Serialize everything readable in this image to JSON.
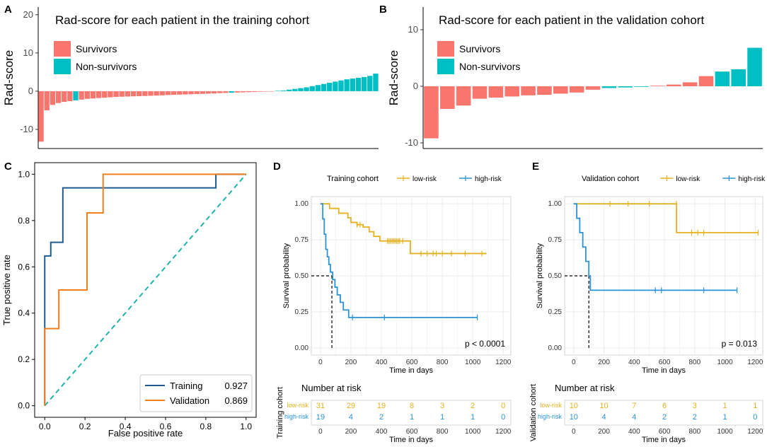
{
  "figure": {
    "panel_labels": [
      "A",
      "B",
      "C",
      "D",
      "E"
    ]
  },
  "colors": {
    "survivors": "#F8766D",
    "non_survivors": "#00BFC4",
    "training_roc": "#1F5B8F",
    "validation_roc": "#F07F1D",
    "diagonal": "#1FB3AB",
    "low_risk": "#E6B01E",
    "high_risk": "#2A93D5",
    "grid": "#EBEBEB"
  },
  "chart_data": [
    {
      "id": "A",
      "type": "bar",
      "title": "Rad-score for each patient in the training cohort",
      "ylabel": "Rad-score",
      "xlabel": "",
      "ylim": [
        -15,
        22
      ],
      "yticks": [
        20,
        10,
        0,
        -10
      ],
      "legend": [
        "Survivors",
        "Non-survivors"
      ],
      "legend_position": "top-left",
      "values": [
        -13.2,
        -5.0,
        -3.6,
        -3.1,
        -2.8,
        -2.6,
        -2.4,
        -2.2,
        -2.0,
        -1.9,
        -1.8,
        -1.7,
        -1.6,
        -1.5,
        -1.45,
        -1.4,
        -1.35,
        -1.3,
        -1.25,
        -1.2,
        -1.15,
        -1.1,
        -1.0,
        -0.95,
        -0.9,
        -0.85,
        -0.8,
        -0.75,
        -0.7,
        -0.65,
        -0.6,
        -0.5,
        -0.45,
        -0.4,
        -0.35,
        -0.3,
        -0.25,
        -0.2,
        -0.15,
        -0.1,
        -0.05,
        0.1,
        0.2,
        0.4,
        0.6,
        0.8,
        1.0,
        1.3,
        1.6,
        1.9,
        2.2,
        2.5,
        2.8,
        3.1,
        3.3,
        3.5,
        3.7,
        4.0,
        4.6
      ],
      "groups": [
        "S",
        "S",
        "S",
        "S",
        "S",
        "S",
        "N",
        "S",
        "S",
        "S",
        "S",
        "S",
        "S",
        "S",
        "S",
        "S",
        "S",
        "S",
        "S",
        "S",
        "S",
        "S",
        "S",
        "S",
        "S",
        "S",
        "S",
        "S",
        "S",
        "S",
        "S",
        "S",
        "S",
        "N",
        "S",
        "S",
        "S",
        "S",
        "S",
        "S",
        "S",
        "N",
        "N",
        "N",
        "N",
        "N",
        "N",
        "N",
        "N",
        "N",
        "N",
        "N",
        "N",
        "N",
        "N",
        "N",
        "N",
        "N",
        "N"
      ]
    },
    {
      "id": "B",
      "type": "bar",
      "title": "Rad-score for each patient in the validation cohort",
      "ylabel": "Rad-score",
      "xlabel": "",
      "ylim": [
        -11,
        14
      ],
      "yticks": [
        10,
        0,
        -10
      ],
      "legend": [
        "Survivors",
        "Non-survivors"
      ],
      "legend_position": "top-left",
      "values": [
        -9.2,
        -4.0,
        -3.4,
        -2.2,
        -2.0,
        -1.8,
        -1.6,
        -1.5,
        -1.3,
        -1.1,
        -0.6,
        -0.3,
        -0.2,
        -0.1,
        0.1,
        0.3,
        0.7,
        1.8,
        2.6,
        3.0,
        6.8
      ],
      "groups": [
        "S",
        "S",
        "S",
        "S",
        "S",
        "S",
        "S",
        "S",
        "S",
        "S",
        "S",
        "N",
        "N",
        "N",
        "S",
        "S",
        "S",
        "S",
        "N",
        "N",
        "N"
      ]
    },
    {
      "id": "C",
      "type": "line",
      "title": "",
      "xlabel": "False positive rate",
      "ylabel": "True positive rate",
      "xlim": [
        0,
        1
      ],
      "ylim": [
        0,
        1
      ],
      "xticks": [
        "0.0",
        "0.2",
        "0.4",
        "0.6",
        "0.8",
        "1.0"
      ],
      "yticks": [
        "0.0",
        "0.2",
        "0.4",
        "0.6",
        "0.8",
        "1.0"
      ],
      "legend_position": "bottom-right",
      "series": [
        {
          "name": "Training",
          "auc": "0.927",
          "x": [
            0,
            0,
            0.03,
            0.03,
            0.09,
            0.09,
            0.85,
            0.85,
            1.0
          ],
          "y": [
            0,
            0.647,
            0.647,
            0.706,
            0.706,
            0.941,
            0.941,
            1.0,
            1.0
          ]
        },
        {
          "name": "Validation",
          "auc": "0.869",
          "x": [
            0,
            0,
            0.07,
            0.07,
            0.21,
            0.21,
            0.29,
            0.29,
            1.0
          ],
          "y": [
            0,
            0.333,
            0.333,
            0.5,
            0.5,
            0.833,
            0.833,
            1.0,
            1.0
          ]
        }
      ],
      "diagonal": {
        "x": [
          0,
          1
        ],
        "y": [
          0,
          1
        ]
      }
    },
    {
      "id": "D",
      "type": "line",
      "title": "",
      "legend_title": "Training cohort",
      "legend": [
        "low-risk",
        "high-risk"
      ],
      "legend_position": "top",
      "xlabel": "Time in days",
      "ylabel": "Survival probability",
      "xlim": [
        0,
        1250
      ],
      "ylim": [
        0,
        1
      ],
      "xticks": [
        "0",
        "200",
        "400",
        "600",
        "800",
        "1000",
        "1200"
      ],
      "yticks": [
        "0.00",
        "0.25",
        "0.50",
        "0.75",
        "1.00"
      ],
      "pvalue": "p < 0.0001",
      "median_line": {
        "x": 75,
        "y": 0.5
      },
      "series": [
        {
          "name": "low-risk",
          "x": [
            0,
            60,
            120,
            180,
            200,
            240,
            280,
            320,
            350,
            390,
            430,
            470,
            590,
            1090
          ],
          "y": [
            1.0,
            0.968,
            0.935,
            0.903,
            0.871,
            0.855,
            0.839,
            0.806,
            0.774,
            0.742,
            0.742,
            0.742,
            0.655,
            0.655
          ],
          "censor_x": [
            240,
            260,
            440,
            450,
            460,
            470,
            480,
            490,
            500,
            510,
            520,
            540,
            660,
            700,
            740,
            760,
            800,
            860,
            950,
            1060
          ],
          "censor_y": [
            0.855,
            0.855,
            0.742,
            0.742,
            0.742,
            0.742,
            0.742,
            0.742,
            0.742,
            0.742,
            0.742,
            0.742,
            0.655,
            0.655,
            0.655,
            0.655,
            0.655,
            0.655,
            0.655,
            0.655
          ]
        },
        {
          "name": "high-risk",
          "x": [
            0,
            15,
            25,
            35,
            45,
            55,
            65,
            80,
            95,
            110,
            130,
            150,
            185,
            1030
          ],
          "y": [
            1.0,
            0.895,
            0.789,
            0.684,
            0.632,
            0.579,
            0.526,
            0.474,
            0.421,
            0.368,
            0.316,
            0.263,
            0.211,
            0.211
          ],
          "censor_x": [
            210,
            420,
            1030
          ],
          "censor_y": [
            0.211,
            0.211,
            0.211
          ]
        }
      ],
      "risk_table": {
        "title": "Number at risk",
        "ylabel": "Training cohort",
        "xlabel": "Time in days",
        "xticks": [
          "0",
          "200",
          "400",
          "600",
          "800",
          "1000",
          "1200"
        ],
        "rows": [
          {
            "label": "low-risk",
            "counts": [
              "31",
              "29",
              "19",
              "8",
              "3",
              "2",
              "0"
            ]
          },
          {
            "label": "high-risk",
            "counts": [
              "19",
              "4",
              "2",
              "1",
              "1",
              "1",
              "0"
            ]
          }
        ]
      }
    },
    {
      "id": "E",
      "type": "line",
      "title": "",
      "legend_title": "Validation cohort",
      "legend": [
        "low-risk",
        "high-risk"
      ],
      "legend_position": "top",
      "xlabel": "Time in days",
      "ylabel": "Survival probability",
      "xlim": [
        0,
        1250
      ],
      "ylim": [
        0,
        1
      ],
      "xticks": [
        "0",
        "200",
        "400",
        "600",
        "800",
        "1000",
        "1200"
      ],
      "yticks": [
        "0.00",
        "0.25",
        "0.50",
        "0.75",
        "1.00"
      ],
      "pvalue": "p = 0.013",
      "median_line": {
        "x": 100,
        "y": 0.5
      },
      "series": [
        {
          "name": "low-risk",
          "x": [
            0,
            680,
            1220
          ],
          "y": [
            1.0,
            0.8,
            0.8
          ],
          "censor_x": [
            240,
            360,
            500,
            680,
            780,
            820,
            860,
            1220
          ],
          "censor_y": [
            1.0,
            1.0,
            1.0,
            1.0,
            0.8,
            0.8,
            0.8,
            0.8
          ]
        },
        {
          "name": "high-risk",
          "x": [
            0,
            20,
            40,
            60,
            80,
            100,
            110,
            1080
          ],
          "y": [
            1.0,
            0.9,
            0.8,
            0.7,
            0.6,
            0.5,
            0.4,
            0.4
          ],
          "censor_x": [
            540,
            580,
            860,
            1080
          ],
          "censor_y": [
            0.4,
            0.4,
            0.4,
            0.4
          ]
        }
      ],
      "risk_table": {
        "title": "Number at risk",
        "ylabel": "Validation cohort",
        "xlabel": "Time in days",
        "xticks": [
          "0",
          "200",
          "400",
          "600",
          "800",
          "1000",
          "1200"
        ],
        "rows": [
          {
            "label": "low-risk",
            "counts": [
              "10",
              "10",
              "7",
              "6",
              "3",
              "1",
              "1"
            ]
          },
          {
            "label": "high-risk",
            "counts": [
              "10",
              "4",
              "4",
              "2",
              "2",
              "1",
              "0"
            ]
          }
        ]
      }
    }
  ]
}
